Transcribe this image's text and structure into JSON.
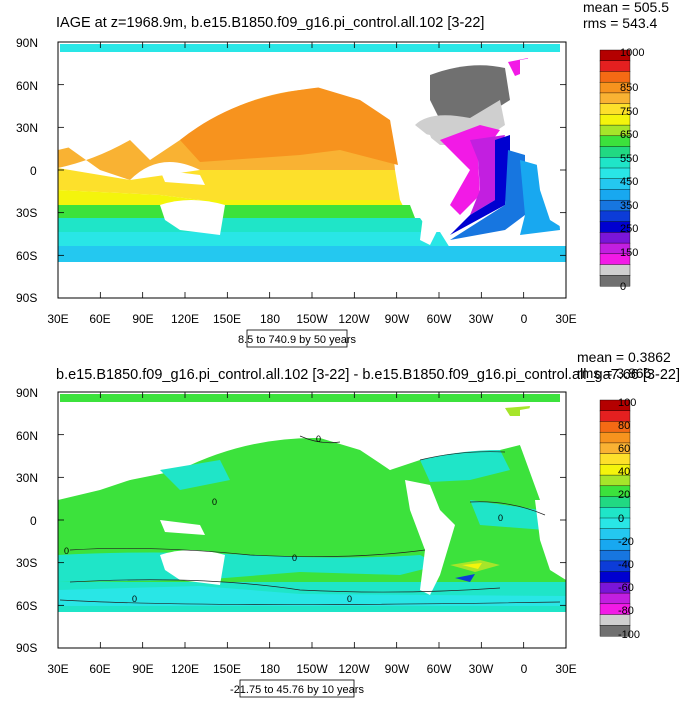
{
  "chart_data": [
    {
      "type": "heatmap",
      "title": "IAGE at z=1968.9m, b.e15.B1850.f09_g16.pi_control.all.102 [3-22]",
      "stats": {
        "mean": "mean = 505.5",
        "rms": "rms = 543.4"
      },
      "range_note": "8.5 to 740.9 by 50 years",
      "x_ticks": [
        "30E",
        "60E",
        "90E",
        "120E",
        "150E",
        "180",
        "150W",
        "120W",
        "90W",
        "60W",
        "30W",
        "0",
        "30E"
      ],
      "y_ticks": [
        "90N",
        "60N",
        "30N",
        "0",
        "30S",
        "60S",
        "90S"
      ],
      "colorbar": {
        "labels": [
          "1000",
          "850",
          "750",
          "650",
          "550",
          "450",
          "350",
          "250",
          "150",
          "0"
        ],
        "colors": [
          "#b40000",
          "#e42020",
          "#f46a14",
          "#f7931e",
          "#f9b233",
          "#fde02b",
          "#f4f40c",
          "#a6e52a",
          "#3ce23c",
          "#21d982",
          "#1fe5c8",
          "#29e6e6",
          "#24c8f0",
          "#18a8f0",
          "#1776e0",
          "#0c3cd8",
          "#0000d0",
          "#7a15d8",
          "#c21fe0",
          "#f21ae6",
          "#cfcfcf",
          "#707070"
        ]
      }
    },
    {
      "type": "heatmap",
      "title": "b.e15.B1850.f09_g16.pi_control.all.102 [3-22] - b.e15.B1850.f09_g16.pi_control.all_ga7.66 [3-22]",
      "stats": {
        "mean": "mean = 0.3862",
        "rms": "rms = 3.866"
      },
      "range_note": "-21.75 to 45.76 by 10 years",
      "x_ticks": [
        "30E",
        "60E",
        "90E",
        "120E",
        "150E",
        "180",
        "150W",
        "120W",
        "90W",
        "60W",
        "30W",
        "0",
        "30E"
      ],
      "y_ticks": [
        "90N",
        "60N",
        "30N",
        "0",
        "30S",
        "60S",
        "90S"
      ],
      "contour_labels": [
        "0",
        "0",
        "0",
        "0",
        "0",
        "0",
        "0"
      ],
      "colorbar": {
        "labels": [
          "100",
          "80",
          "60",
          "40",
          "20",
          "0",
          "-20",
          "-40",
          "-60",
          "-80",
          "-100"
        ],
        "colors": [
          "#b40000",
          "#e42020",
          "#f46a14",
          "#f7931e",
          "#f9b233",
          "#fde02b",
          "#f4f40c",
          "#a6e52a",
          "#3ce23c",
          "#21d982",
          "#1fe5c8",
          "#29e6e6",
          "#24c8f0",
          "#18a8f0",
          "#1776e0",
          "#0c3cd8",
          "#0000d0",
          "#7a15d8",
          "#c21fe0",
          "#f21ae6",
          "#cfcfcf",
          "#707070"
        ]
      }
    }
  ]
}
